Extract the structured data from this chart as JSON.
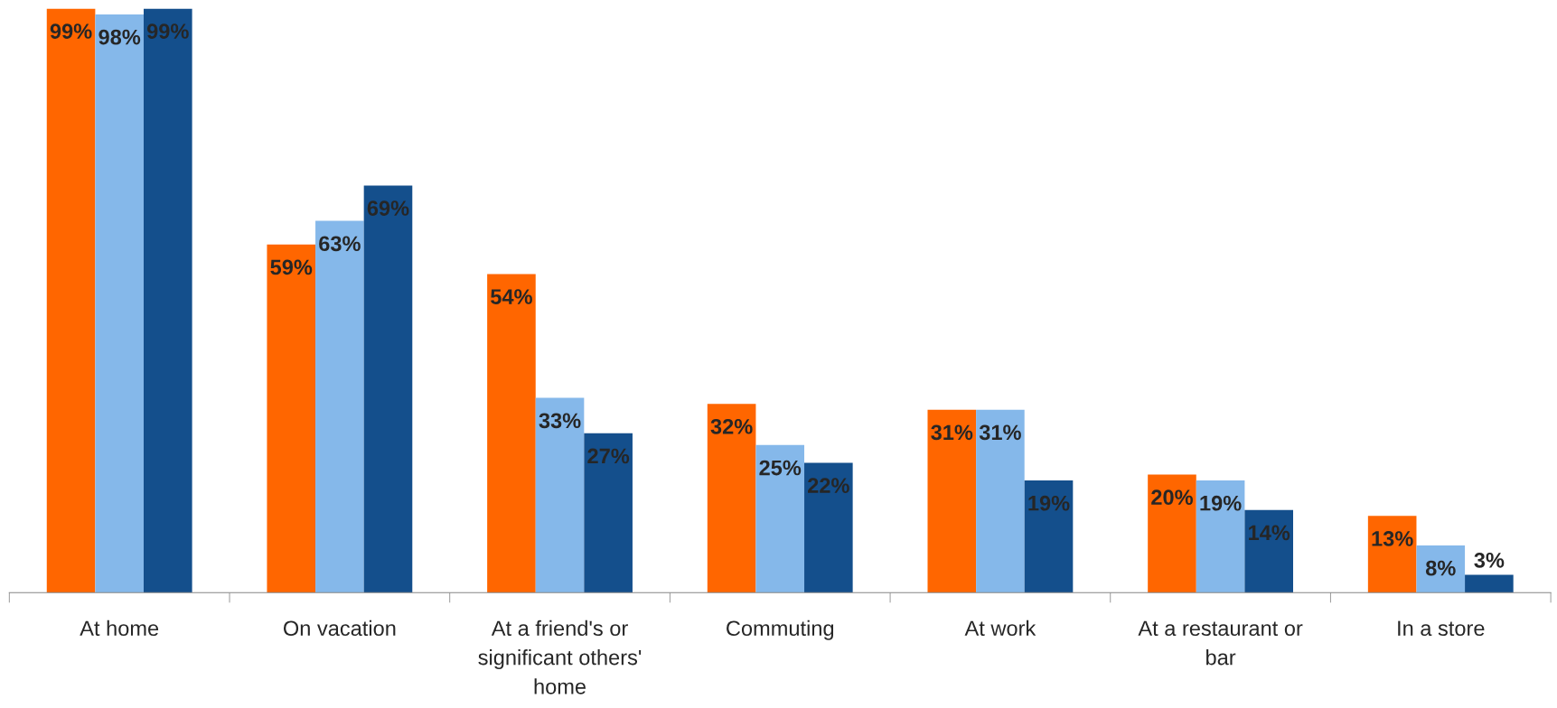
{
  "chart_data": {
    "type": "bar",
    "categories": [
      "At home",
      "On vacation",
      "At a friend's or\nsignificant others'\nhome",
      "Commuting",
      "At work",
      "At a restaurant or\nbar",
      "In a store"
    ],
    "series": [
      {
        "color": "#ff6600",
        "values": [
          99,
          59,
          54,
          32,
          31,
          20,
          13
        ],
        "value_labels": [
          "99%",
          "59%",
          "54%",
          "32%",
          "31%",
          "20%",
          "13%"
        ]
      },
      {
        "color": "#85b8ea",
        "values": [
          98,
          63,
          33,
          25,
          31,
          19,
          8
        ],
        "value_labels": [
          "98%",
          "63%",
          "33%",
          "25%",
          "31%",
          "19%",
          "8%"
        ]
      },
      {
        "color": "#144f8c",
        "values": [
          99,
          69,
          27,
          22,
          19,
          14,
          3
        ],
        "value_labels": [
          "99%",
          "69%",
          "27%",
          "22%",
          "19%",
          "14%",
          "3%"
        ]
      }
    ],
    "grid": false
  }
}
